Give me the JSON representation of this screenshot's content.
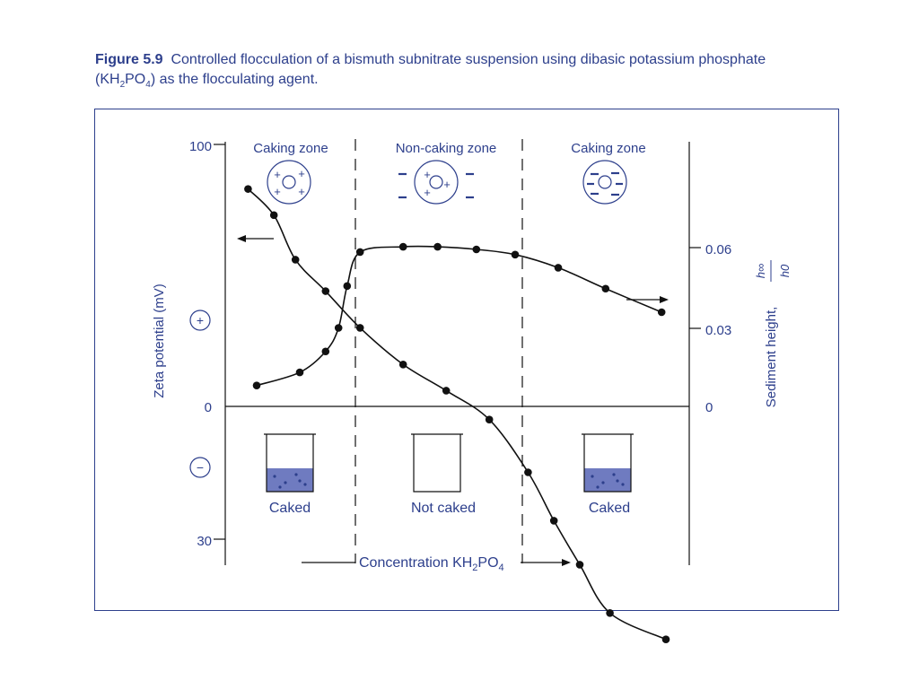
{
  "caption": {
    "label": "Figure 5.9",
    "text_before": "Controlled flocculation of a bismuth subnitrate suspension using dibasic potassium phosphate (KH",
    "sub1": "2",
    "text_mid": "PO",
    "sub2": "4",
    "text_after": ") as the flocculating agent."
  },
  "colors": {
    "blue": "#2d3f8c",
    "black": "#111111",
    "sediment": "#6f7bc0"
  },
  "chart_data": {
    "type": "line",
    "xlabel": {
      "main": "Concentration KH",
      "sub1": "2",
      "mid": "PO",
      "sub2": "4"
    },
    "left_axis": {
      "label": "Zeta potential (mV)",
      "ticks": [
        "100",
        "0",
        "30"
      ],
      "plus_symbol": "+",
      "minus_symbol": "−"
    },
    "right_axis": {
      "label": "Sediment height,",
      "fraction_num": "h∞",
      "fraction_den": "h0",
      "ticks": [
        "0.06",
        "0.03",
        "0"
      ],
      "range": [
        0,
        0.06
      ]
    },
    "zones": [
      {
        "label": "Caking zone",
        "particle": "positive",
        "beaker": "Caked"
      },
      {
        "label": "Non-caking zone",
        "particle": "mixed",
        "beaker": "Not caked"
      },
      {
        "label": "Caking zone",
        "particle": "negative",
        "beaker": "Caked"
      }
    ],
    "series": [
      {
        "axis": "left",
        "points": [
          [
            0.03,
            83
          ],
          [
            0.09,
            73
          ],
          [
            0.14,
            56
          ],
          [
            0.21,
            44
          ],
          [
            0.29,
            30
          ],
          [
            0.39,
            16
          ],
          [
            0.49,
            6
          ],
          [
            0.59,
            -3
          ],
          [
            0.68,
            -15
          ],
          [
            0.74,
            -26
          ],
          [
            0.8,
            -36
          ],
          [
            0.87,
            -47
          ],
          [
            1.0,
            -53
          ]
        ]
      },
      {
        "axis": "right",
        "points": [
          [
            0.05,
            0.008
          ],
          [
            0.15,
            0.013
          ],
          [
            0.21,
            0.021
          ],
          [
            0.24,
            0.03
          ],
          [
            0.26,
            0.046
          ],
          [
            0.29,
            0.059
          ],
          [
            0.39,
            0.061
          ],
          [
            0.47,
            0.061
          ],
          [
            0.56,
            0.06
          ],
          [
            0.65,
            0.058
          ],
          [
            0.75,
            0.053
          ],
          [
            0.86,
            0.045
          ],
          [
            0.99,
            0.036
          ]
        ]
      }
    ]
  }
}
